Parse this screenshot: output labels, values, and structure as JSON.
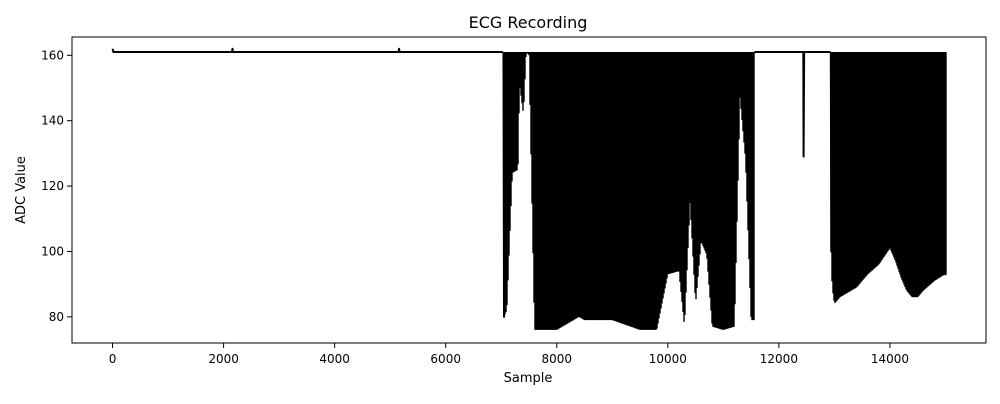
{
  "chart_data": {
    "type": "line",
    "title": "ECG Recording",
    "xlabel": "Sample",
    "ylabel": "ADC Value",
    "xlim": [
      -730,
      15730
    ],
    "ylim": [
      72.0,
      165.6
    ],
    "xticks": [
      0,
      2000,
      4000,
      6000,
      8000,
      10000,
      12000,
      14000
    ],
    "yticks": [
      80,
      100,
      120,
      140,
      160
    ],
    "grid": false,
    "legend": "none",
    "line_color": "#000000",
    "series": [
      {
        "description_points": {
          "baseline_start": [
            [
              0,
              162
            ],
            [
              15,
              161
            ],
            [
              2150,
              161
            ],
            [
              2160,
              162
            ],
            [
              2170,
              161
            ],
            [
              5150,
              161
            ],
            [
              5160,
              162
            ],
            [
              5170,
              161
            ],
            [
              7030,
              161
            ]
          ],
          "burst_1": {
            "x_start": 7050,
            "x_end": 11550,
            "high": 161,
            "min_envelope": [
              [
                7050,
                80
              ],
              [
                7100,
                82
              ],
              [
                7200,
                124
              ],
              [
                7300,
                125
              ],
              [
                7330,
                151
              ],
              [
                7400,
                142
              ],
              [
                7450,
                161
              ],
              [
                7500,
                160
              ],
              [
                7600,
                76
              ],
              [
                8000,
                76
              ],
              [
                8400,
                80
              ],
              [
                8500,
                79
              ],
              [
                9000,
                79
              ],
              [
                9500,
                76
              ],
              [
                9800,
                76
              ],
              [
                10000,
                93
              ],
              [
                10200,
                94
              ],
              [
                10300,
                77
              ],
              [
                10400,
                115
              ],
              [
                10500,
                84
              ],
              [
                10600,
                103
              ],
              [
                10700,
                99
              ],
              [
                10800,
                77
              ],
              [
                11000,
                76
              ],
              [
                11200,
                77
              ],
              [
                11300,
                147
              ],
              [
                11400,
                128
              ],
              [
                11500,
                79
              ],
              [
                11550,
                79
              ]
            ]
          },
          "baseline_mid": [
            [
              11560,
              161
            ],
            [
              12440,
              161
            ],
            [
              12445,
              129
            ],
            [
              12455,
              161
            ],
            [
              12930,
              161
            ]
          ],
          "burst_2": {
            "x_start": 12940,
            "x_end": 15000,
            "high": 161,
            "min_envelope": [
              [
                12940,
                100
              ],
              [
                12960,
                89
              ],
              [
                13000,
                84
              ],
              [
                13100,
                86
              ],
              [
                13200,
                87
              ],
              [
                13400,
                89
              ],
              [
                13600,
                93
              ],
              [
                13800,
                96
              ],
              [
                14000,
                101
              ],
              [
                14100,
                97
              ],
              [
                14200,
                92
              ],
              [
                14300,
                88
              ],
              [
                14400,
                86
              ],
              [
                14500,
                86
              ],
              [
                14600,
                88
              ],
              [
                14800,
                91
              ],
              [
                14990,
                93
              ]
            ]
          }
        }
      }
    ]
  }
}
